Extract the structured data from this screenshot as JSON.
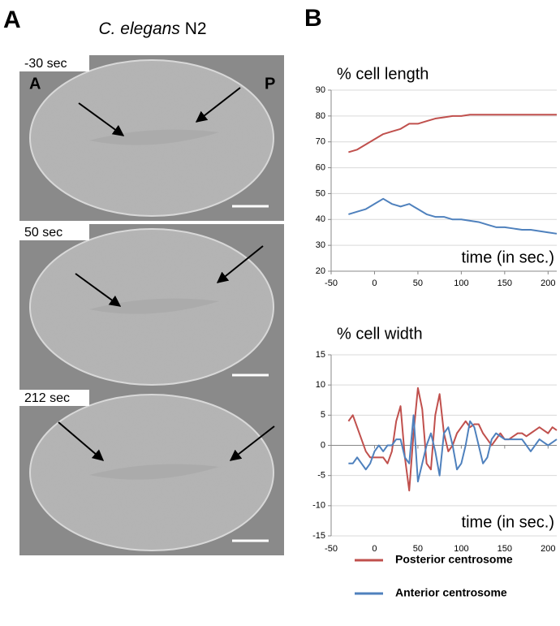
{
  "panel_a": {
    "label": "A",
    "species": "C. elegans",
    "strain": "N2",
    "images": [
      {
        "time": "-30 sec",
        "left": "A",
        "right": "P"
      },
      {
        "time": "50 sec"
      },
      {
        "time": "212 sec"
      }
    ]
  },
  "panel_b": {
    "label": "B"
  },
  "chart_data": [
    {
      "type": "line",
      "title": "% cell length",
      "xlabel": "time (in sec.)",
      "x": [
        -30,
        -20,
        -10,
        0,
        10,
        20,
        30,
        40,
        50,
        60,
        70,
        80,
        90,
        100,
        110,
        120,
        130,
        140,
        150,
        160,
        170,
        180,
        190,
        200,
        210
      ],
      "series": [
        {
          "name": "Posterior centrosome",
          "color": "#c0504d",
          "values": [
            66,
            67,
            69,
            71,
            73,
            74,
            75,
            77,
            77,
            78,
            79,
            79.5,
            80,
            80,
            80.5,
            80.5,
            80.5,
            80.5,
            80.5,
            80.5,
            80.5,
            80.5,
            80.5,
            80.5,
            80.5
          ]
        },
        {
          "name": "Anterior centrosome",
          "color": "#4f81bd",
          "values": [
            42,
            43,
            44,
            46,
            48,
            46,
            45,
            46,
            44,
            42,
            41,
            41,
            40,
            40,
            39.5,
            39,
            38,
            37,
            37,
            36.5,
            36,
            36,
            35.5,
            35,
            34.5
          ]
        }
      ],
      "xlim": [
        -50,
        210
      ],
      "xticks": [
        -50,
        0,
        50,
        100,
        150,
        200
      ],
      "ylim": [
        20,
        90
      ],
      "yticks": [
        20,
        30,
        40,
        50,
        60,
        70,
        80,
        90
      ],
      "grid": true
    },
    {
      "type": "line",
      "title": "% cell width",
      "xlabel": "time (in sec.)",
      "x": [
        -30,
        -25,
        -20,
        -15,
        -10,
        -5,
        0,
        5,
        10,
        15,
        20,
        25,
        30,
        35,
        40,
        45,
        50,
        55,
        60,
        65,
        70,
        75,
        80,
        85,
        90,
        95,
        100,
        105,
        110,
        115,
        120,
        125,
        130,
        135,
        140,
        145,
        150,
        155,
        160,
        165,
        170,
        175,
        180,
        185,
        190,
        195,
        200,
        205,
        210
      ],
      "series": [
        {
          "name": "Posterior centrosome",
          "color": "#c0504d",
          "values": [
            4,
            5,
            3,
            1,
            -1,
            -2,
            -2,
            -2,
            -2,
            -3,
            -1,
            4,
            6.5,
            -2,
            -7.5,
            2,
            9.5,
            6,
            -3,
            -4,
            5,
            8.5,
            2,
            -1,
            0,
            2,
            3,
            4,
            3,
            3.5,
            3.5,
            2,
            1,
            0,
            1,
            2,
            1,
            1,
            1.5,
            2,
            2,
            1.5,
            2,
            2.5,
            3,
            2.5,
            2,
            3,
            2.5
          ]
        },
        {
          "name": "Anterior centrosome",
          "color": "#4f81bd",
          "values": [
            -3,
            -3,
            -2,
            -3,
            -4,
            -3,
            -1,
            0,
            -1,
            0,
            0,
            1,
            1,
            -2,
            -3,
            5,
            -6,
            -3,
            0,
            2,
            -1,
            -5,
            2,
            3,
            0,
            -4,
            -3,
            0,
            4,
            3,
            0,
            -3,
            -2,
            1,
            2,
            1.5,
            1,
            1,
            1,
            1,
            1,
            0,
            -1,
            0,
            1,
            0.5,
            0,
            0.5,
            1
          ]
        }
      ],
      "xlim": [
        -50,
        210
      ],
      "xticks": [
        -50,
        0,
        50,
        100,
        150,
        200
      ],
      "ylim": [
        -15,
        15
      ],
      "yticks": [
        -15,
        -10,
        -5,
        0,
        5,
        10,
        15
      ],
      "grid": true
    }
  ]
}
